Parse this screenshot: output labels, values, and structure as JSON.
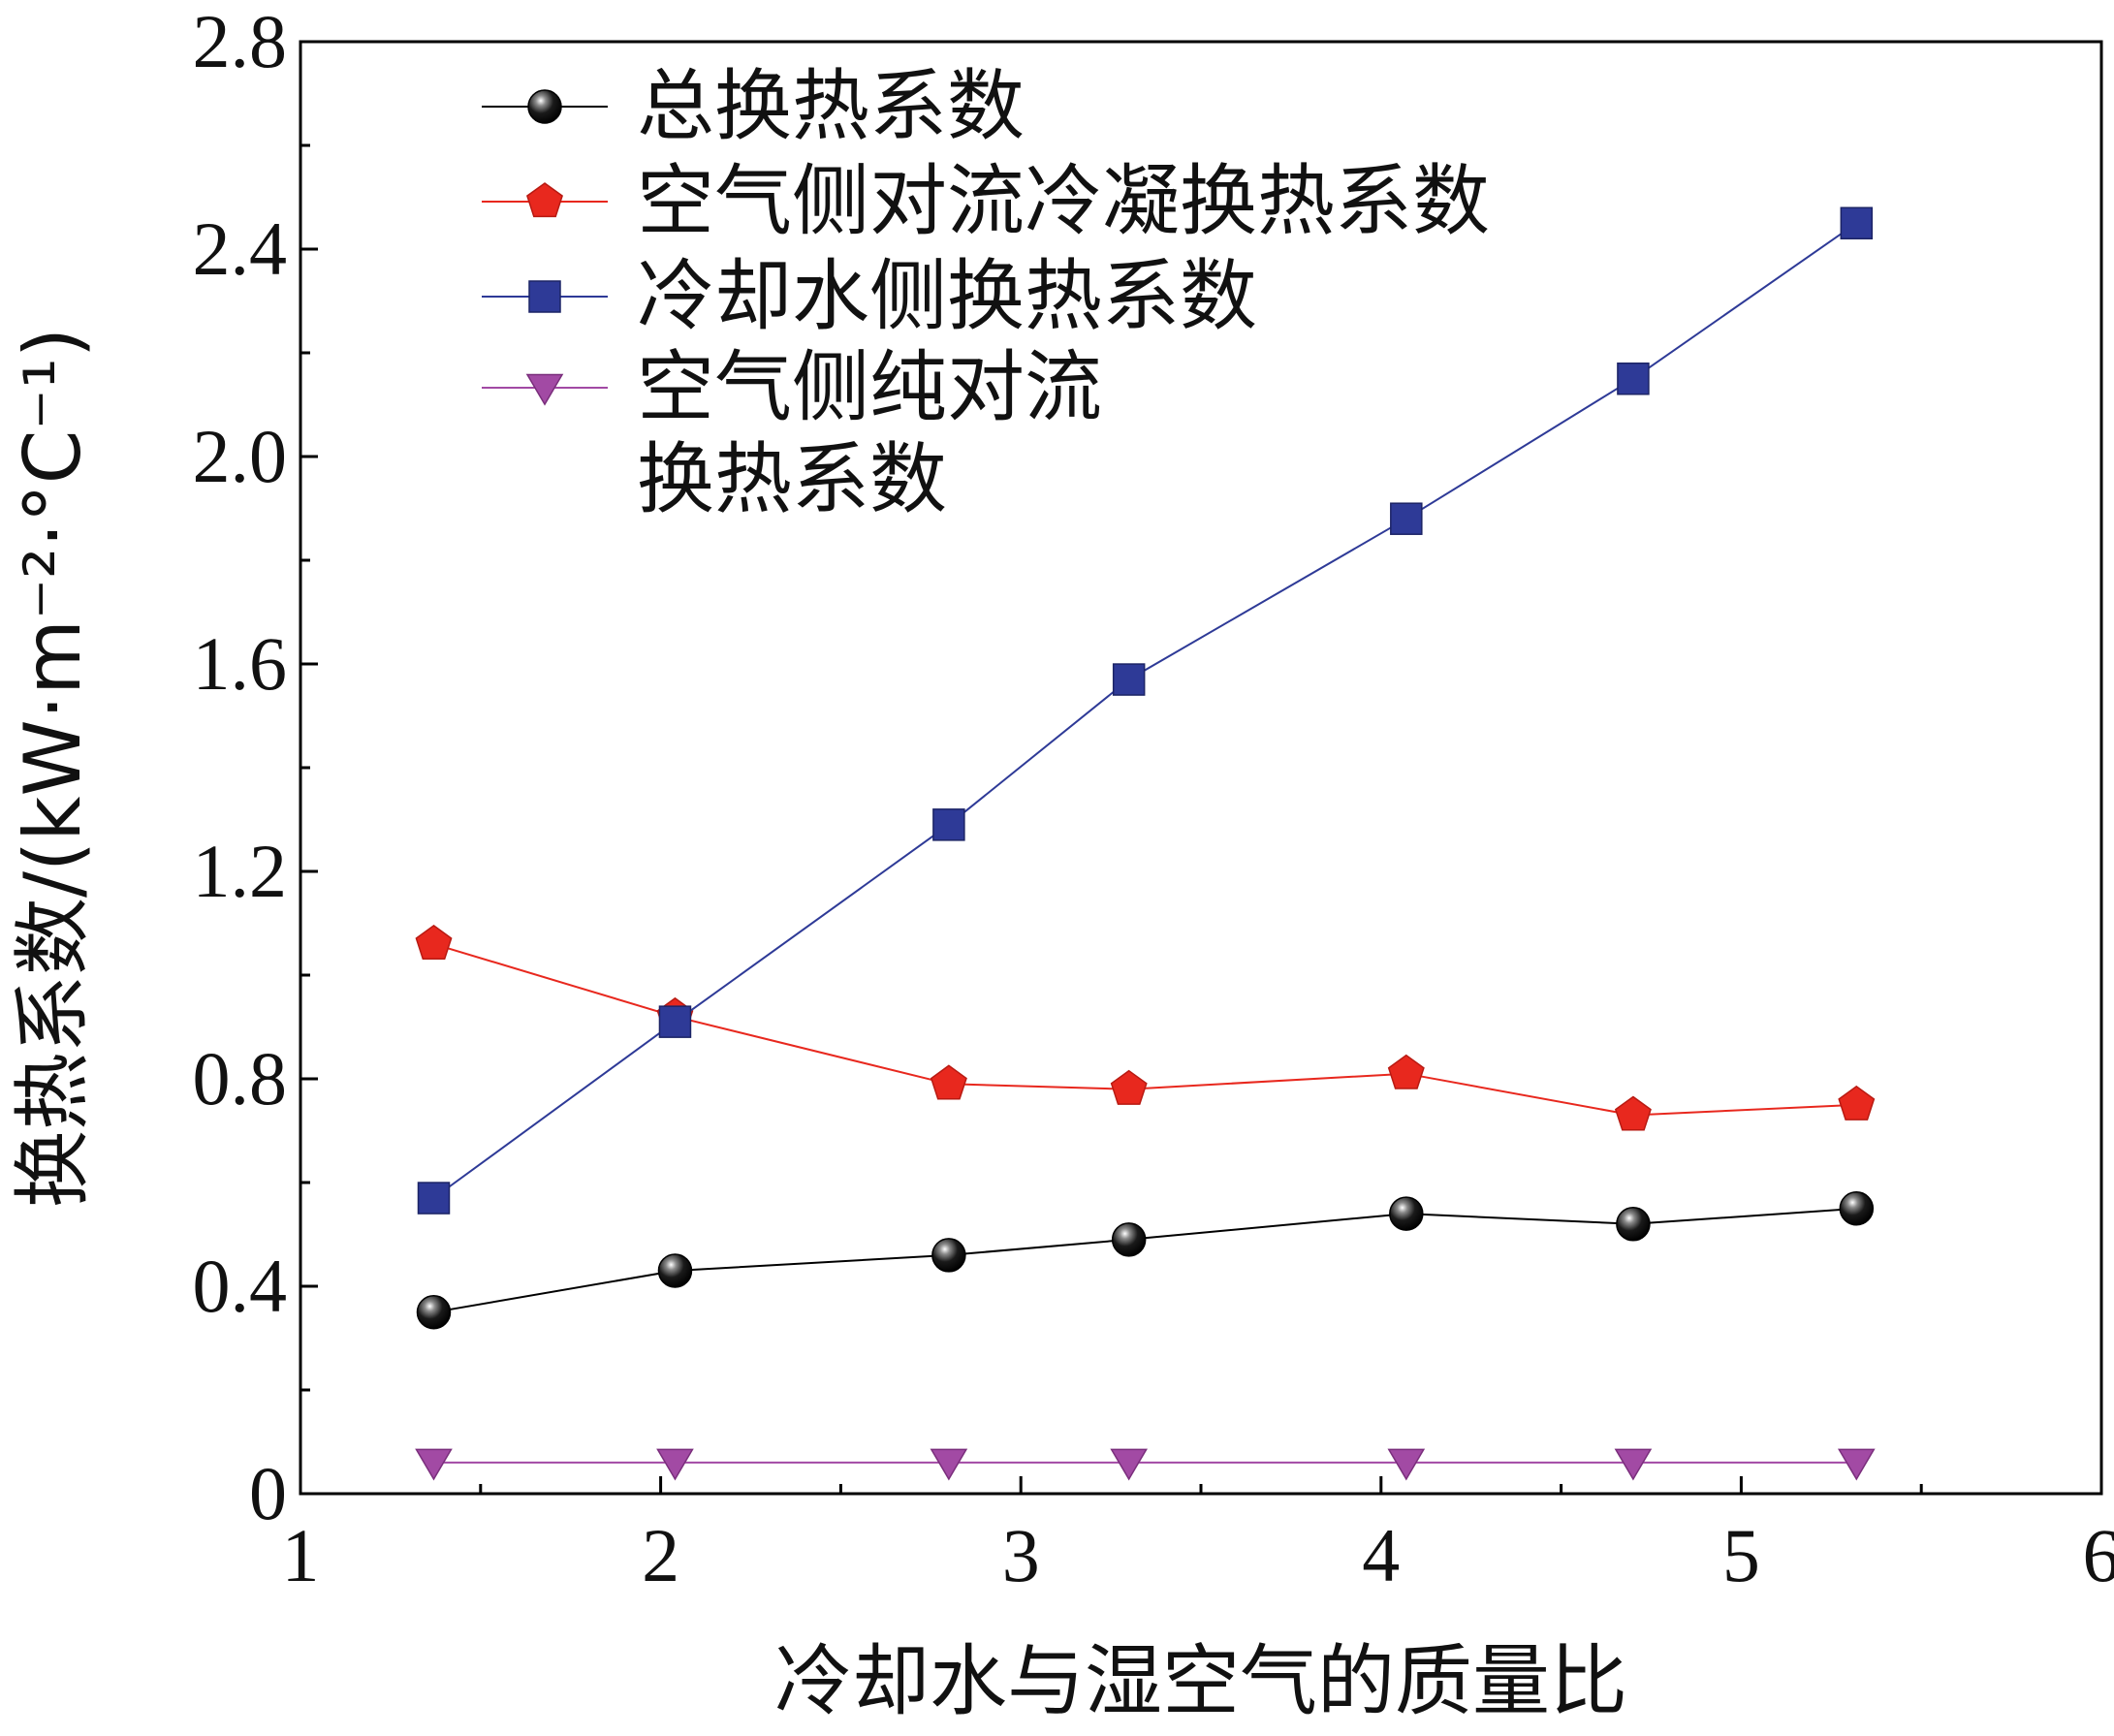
{
  "chart_data": {
    "type": "line",
    "xlabel": "冷却水与湿空气的质量比",
    "ylabel": "换热系数/(kW·m⁻²·°C⁻¹)",
    "xlim": [
      1,
      6
    ],
    "ylim": [
      0,
      2.8
    ],
    "x_ticks": [
      "1",
      "2",
      "3",
      "4",
      "5",
      "6"
    ],
    "y_ticks": [
      "0",
      "0.4",
      "0.8",
      "1.2",
      "1.6",
      "2.0",
      "2.4",
      "2.8"
    ],
    "x": [
      1.37,
      2.04,
      2.8,
      3.3,
      4.07,
      4.7,
      5.32
    ],
    "legend_position": "top-left",
    "grid": false,
    "series": [
      {
        "name": "总换热系数",
        "name_lines": [
          "总换热系数"
        ],
        "color": "#000000",
        "marker": "sphere",
        "values": [
          0.35,
          0.43,
          0.46,
          0.49,
          0.54,
          0.52,
          0.55
        ]
      },
      {
        "name": "空气侧对流冷凝换热系数",
        "name_lines": [
          "空气侧对流冷凝换热系数"
        ],
        "color": "#e8281e",
        "marker": "pentagon",
        "values": [
          1.06,
          0.92,
          0.79,
          0.78,
          0.81,
          0.73,
          0.75
        ]
      },
      {
        "name": "冷却水侧换热系数",
        "name_lines": [
          "冷却水侧换热系数"
        ],
        "color": "#2e3a97",
        "marker": "square",
        "values": [
          0.57,
          0.91,
          1.29,
          1.57,
          1.88,
          2.15,
          2.45
        ]
      },
      {
        "name": "空气侧纯对流换热系数",
        "name_lines": [
          "空气侧纯对流",
          "换热系数"
        ],
        "color": "#a24aa4",
        "marker": "triangle-down",
        "values": [
          0.06,
          0.06,
          0.06,
          0.06,
          0.06,
          0.06,
          0.06
        ]
      }
    ]
  }
}
